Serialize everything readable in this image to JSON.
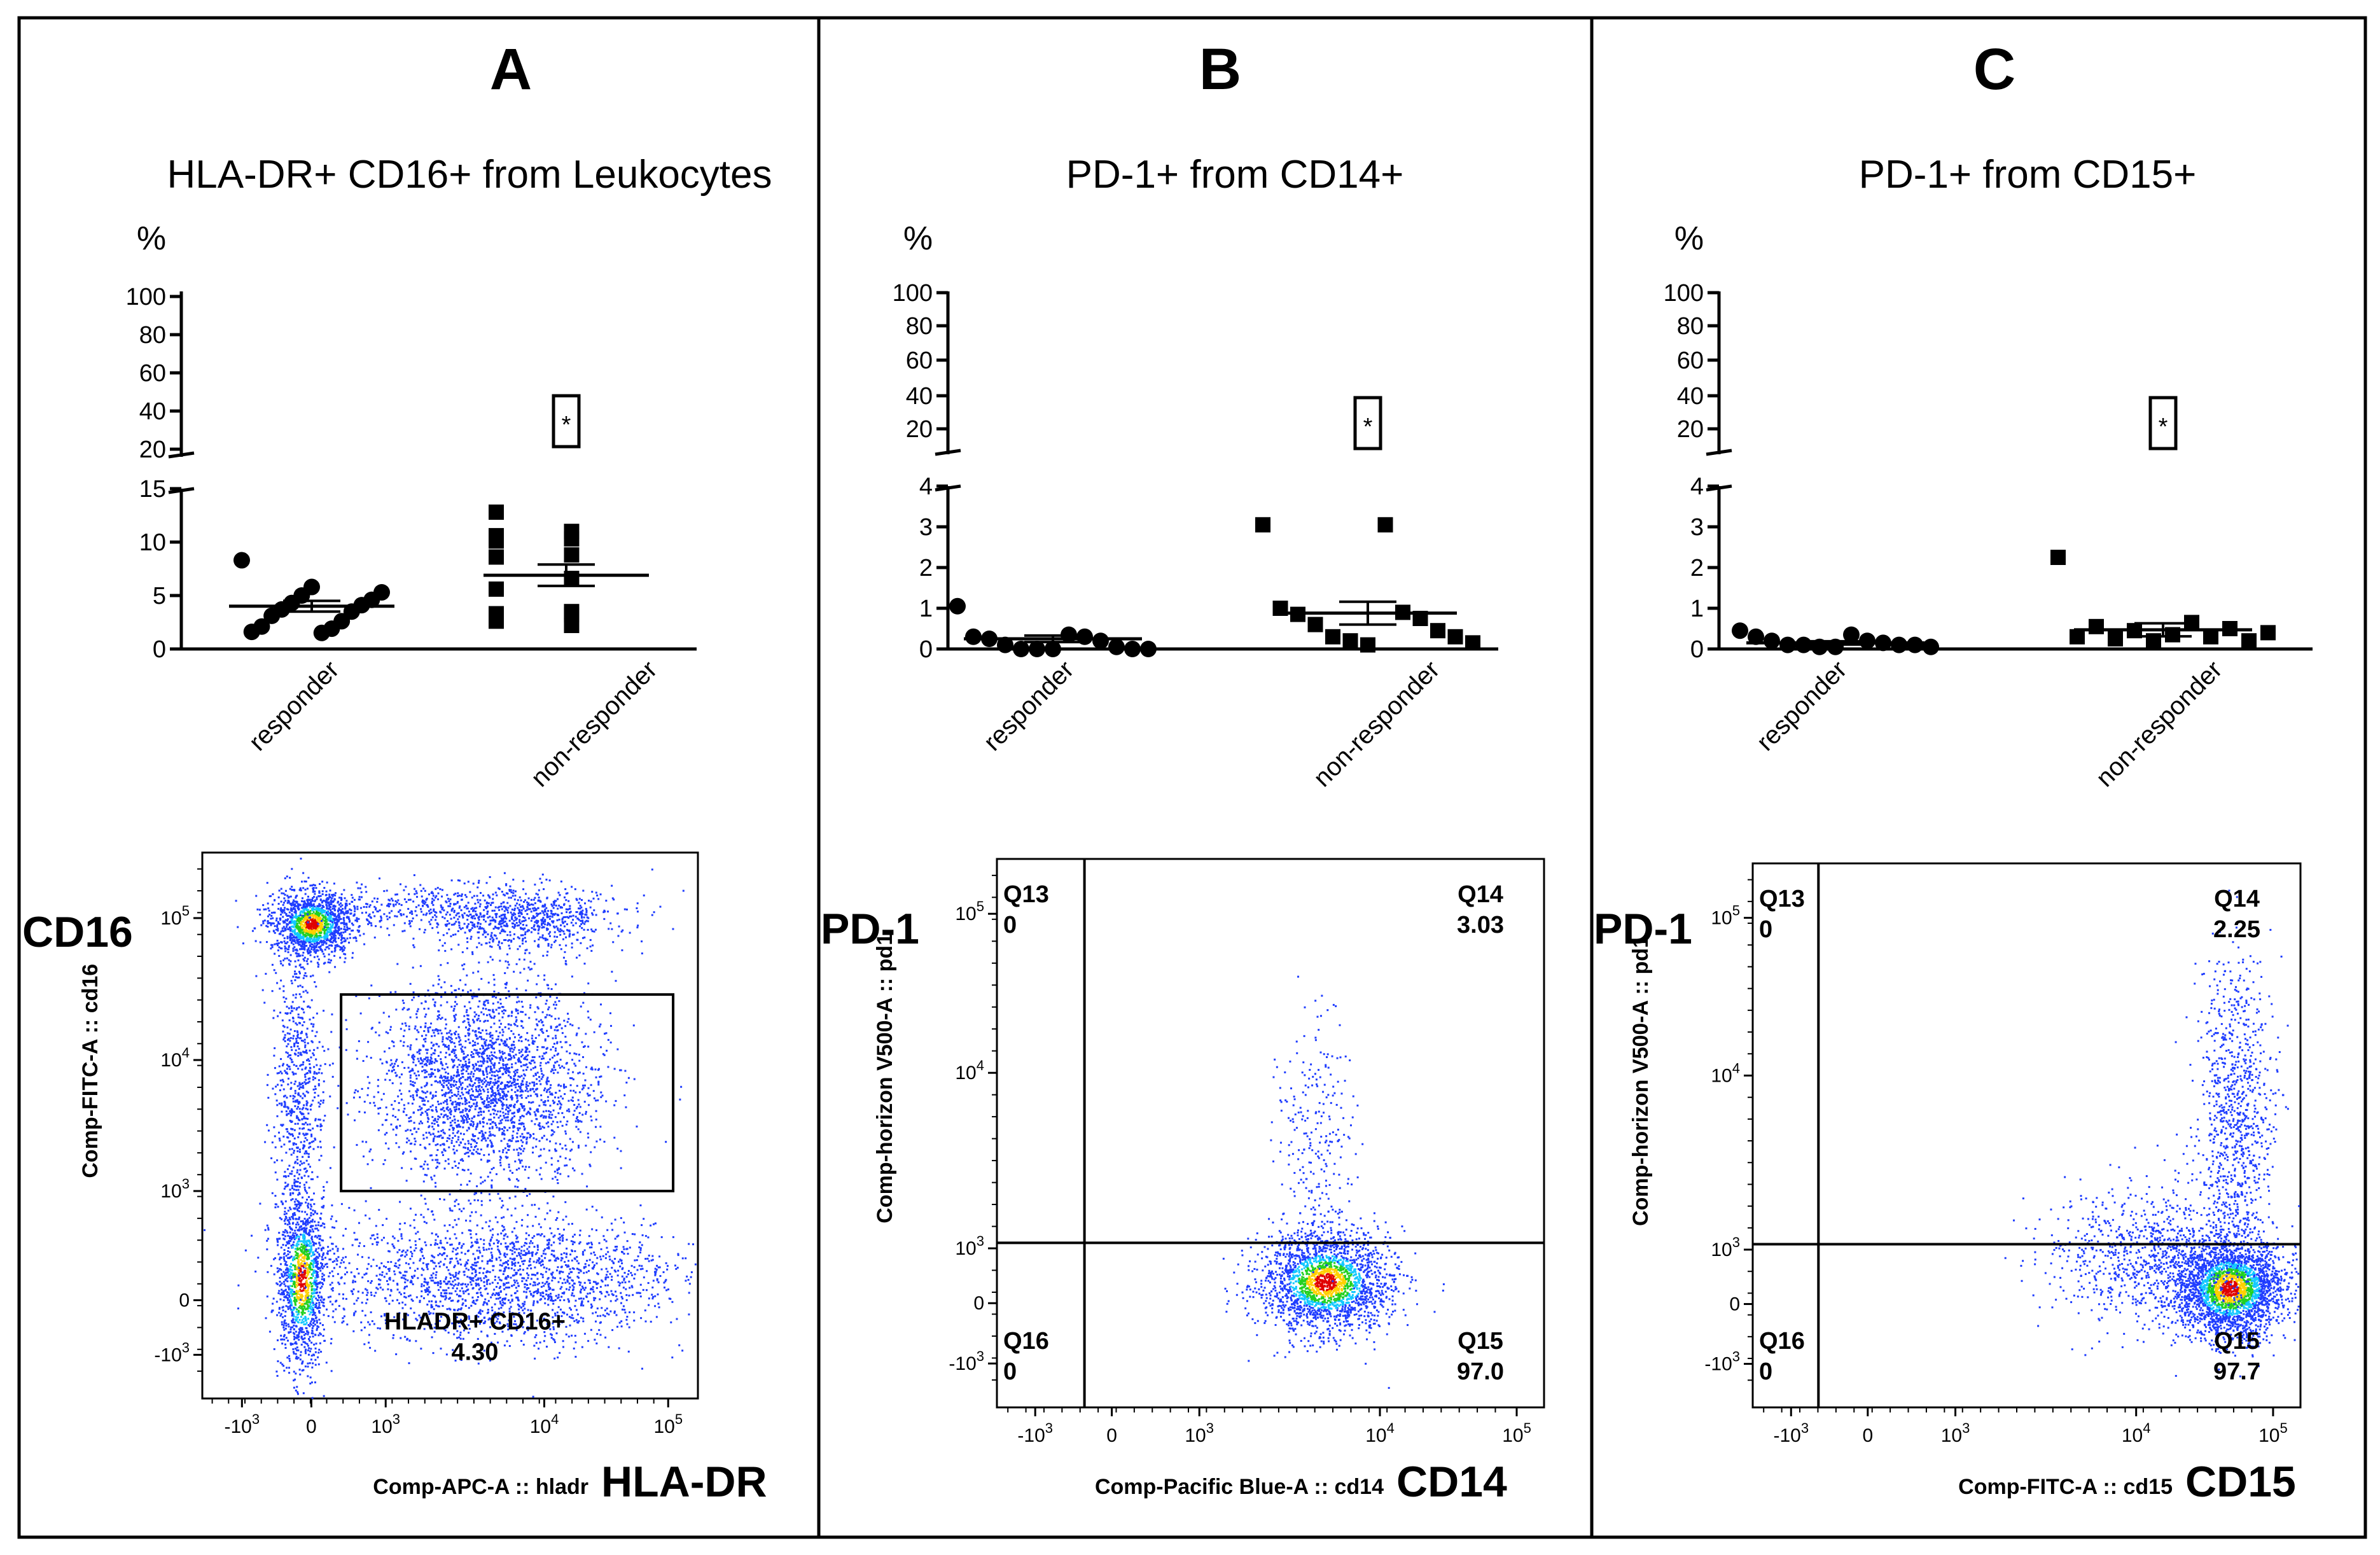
{
  "chart_data": [
    {
      "type": "scatter",
      "panel": "A",
      "title": "HLA-DR+ CD16+ from Leukocytes",
      "ylabel": "%",
      "y_upper_ticks": [
        "20",
        "40",
        "60",
        "80",
        "100"
      ],
      "y_lower_ticks": [
        "0",
        "5",
        "10",
        "15"
      ],
      "y_lower_range": [
        0,
        15
      ],
      "y_upper_range": [
        20,
        100
      ],
      "categories": [
        "responder",
        "non-responder"
      ],
      "significance": "*",
      "series": [
        {
          "name": "responder",
          "marker": "circle",
          "values": [
            8.3,
            5.8,
            5.3,
            5.0,
            4.6,
            4.3,
            4.1,
            3.7,
            3.5,
            3.1,
            2.6,
            2.1,
            1.9,
            1.6,
            1.5
          ],
          "mean": 4.0,
          "sem": 0.5
        },
        {
          "name": "non-responder",
          "marker": "square",
          "values": [
            12.8,
            11.0,
            10.6,
            10.3,
            10.1,
            8.8,
            8.6,
            6.6,
            5.6,
            3.5,
            3.3,
            3.2,
            2.6,
            2.2
          ],
          "mean": 6.9,
          "sem": 1.0
        }
      ],
      "flow": {
        "y_marker": "CD16",
        "x_marker": "HLA-DR",
        "y_axis_label": "Comp-FITC-A :: cd16",
        "x_axis_label": "Comp-APC-A :: hladr",
        "x_ticks": [
          "-10",
          "0",
          "10",
          "10",
          "10"
        ],
        "x_tick_exps": [
          "3",
          "",
          "3",
          "4",
          "5"
        ],
        "y_ticks": [
          "-10",
          "0",
          "10",
          "10",
          "10"
        ],
        "y_tick_exps": [
          "3",
          "",
          "3",
          "4",
          "5"
        ],
        "gate_name": "HLADR+ CD16+",
        "gate_value": "4.30"
      }
    },
    {
      "type": "scatter",
      "panel": "B",
      "title": "PD-1+ from CD14+",
      "ylabel": "%",
      "y_upper_ticks": [
        "20",
        "40",
        "60",
        "80",
        "100"
      ],
      "y_lower_ticks": [
        "0",
        "1",
        "2",
        "3",
        "4"
      ],
      "y_lower_range": [
        0,
        4
      ],
      "y_upper_range": [
        20,
        100
      ],
      "categories": [
        "responder",
        "non-responder"
      ],
      "significance": "*",
      "series": [
        {
          "name": "responder",
          "marker": "circle",
          "values": [
            1.05,
            0.35,
            0.3,
            0.3,
            0.25,
            0.2,
            0.1,
            0.05,
            0.0,
            0.0,
            0.0,
            0.0,
            0.0
          ],
          "mean": 0.25,
          "sem": 0.08
        },
        {
          "name": "non-responder",
          "marker": "square",
          "values": [
            3.05,
            3.05,
            1.0,
            0.9,
            0.85,
            0.75,
            0.6,
            0.45,
            0.3,
            0.3,
            0.2,
            0.15,
            0.1
          ],
          "mean": 0.88,
          "sem": 0.28
        }
      ],
      "flow": {
        "y_marker": "PD-1",
        "x_marker": "CD14",
        "y_axis_label": "Comp-horizon V500-A :: pd1",
        "x_axis_label": "Comp-Pacific Blue-A :: cd14",
        "x_ticks": [
          "-10",
          "0",
          "10",
          "10",
          "10"
        ],
        "x_tick_exps": [
          "3",
          "",
          "3",
          "4",
          "5"
        ],
        "y_ticks": [
          "-10",
          "0",
          "10",
          "10",
          "10"
        ],
        "y_tick_exps": [
          "3",
          "",
          "3",
          "4",
          "5"
        ],
        "quadrants": [
          {
            "name": "Q13",
            "value": "0"
          },
          {
            "name": "Q14",
            "value": "3.03"
          },
          {
            "name": "Q16",
            "value": "0"
          },
          {
            "name": "Q15",
            "value": "97.0"
          }
        ]
      }
    },
    {
      "type": "scatter",
      "panel": "C",
      "title": "PD-1+ from CD15+",
      "ylabel": "%",
      "y_upper_ticks": [
        "20",
        "40",
        "60",
        "80",
        "100"
      ],
      "y_lower_ticks": [
        "0",
        "1",
        "2",
        "3",
        "4"
      ],
      "y_lower_range": [
        0,
        4
      ],
      "y_upper_range": [
        20,
        100
      ],
      "categories": [
        "responder",
        "non-responder"
      ],
      "significance": "*",
      "series": [
        {
          "name": "responder",
          "marker": "circle",
          "values": [
            0.45,
            0.35,
            0.3,
            0.2,
            0.2,
            0.15,
            0.1,
            0.1,
            0.1,
            0.1,
            0.05,
            0.05,
            0.05
          ],
          "mean": 0.15,
          "sem": 0.04
        },
        {
          "name": "non-responder",
          "marker": "square",
          "values": [
            2.25,
            0.65,
            0.55,
            0.5,
            0.45,
            0.4,
            0.35,
            0.3,
            0.3,
            0.25,
            0.2,
            0.2
          ],
          "mean": 0.47,
          "sem": 0.16
        }
      ],
      "flow": {
        "y_marker": "PD-1",
        "x_marker": "CD15",
        "y_axis_label": "Comp-horizon V500-A :: pd1",
        "x_axis_label": "Comp-FITC-A :: cd15",
        "x_ticks": [
          "-10",
          "0",
          "10",
          "10",
          "10"
        ],
        "x_tick_exps": [
          "3",
          "",
          "3",
          "4",
          "5"
        ],
        "y_ticks": [
          "-10",
          "0",
          "10",
          "10",
          "10"
        ],
        "y_tick_exps": [
          "3",
          "",
          "3",
          "4",
          "5"
        ],
        "quadrants": [
          {
            "name": "Q13",
            "value": "0"
          },
          {
            "name": "Q14",
            "value": "2.25"
          },
          {
            "name": "Q16",
            "value": "0"
          },
          {
            "name": "Q15",
            "value": "97.7"
          }
        ]
      }
    }
  ]
}
